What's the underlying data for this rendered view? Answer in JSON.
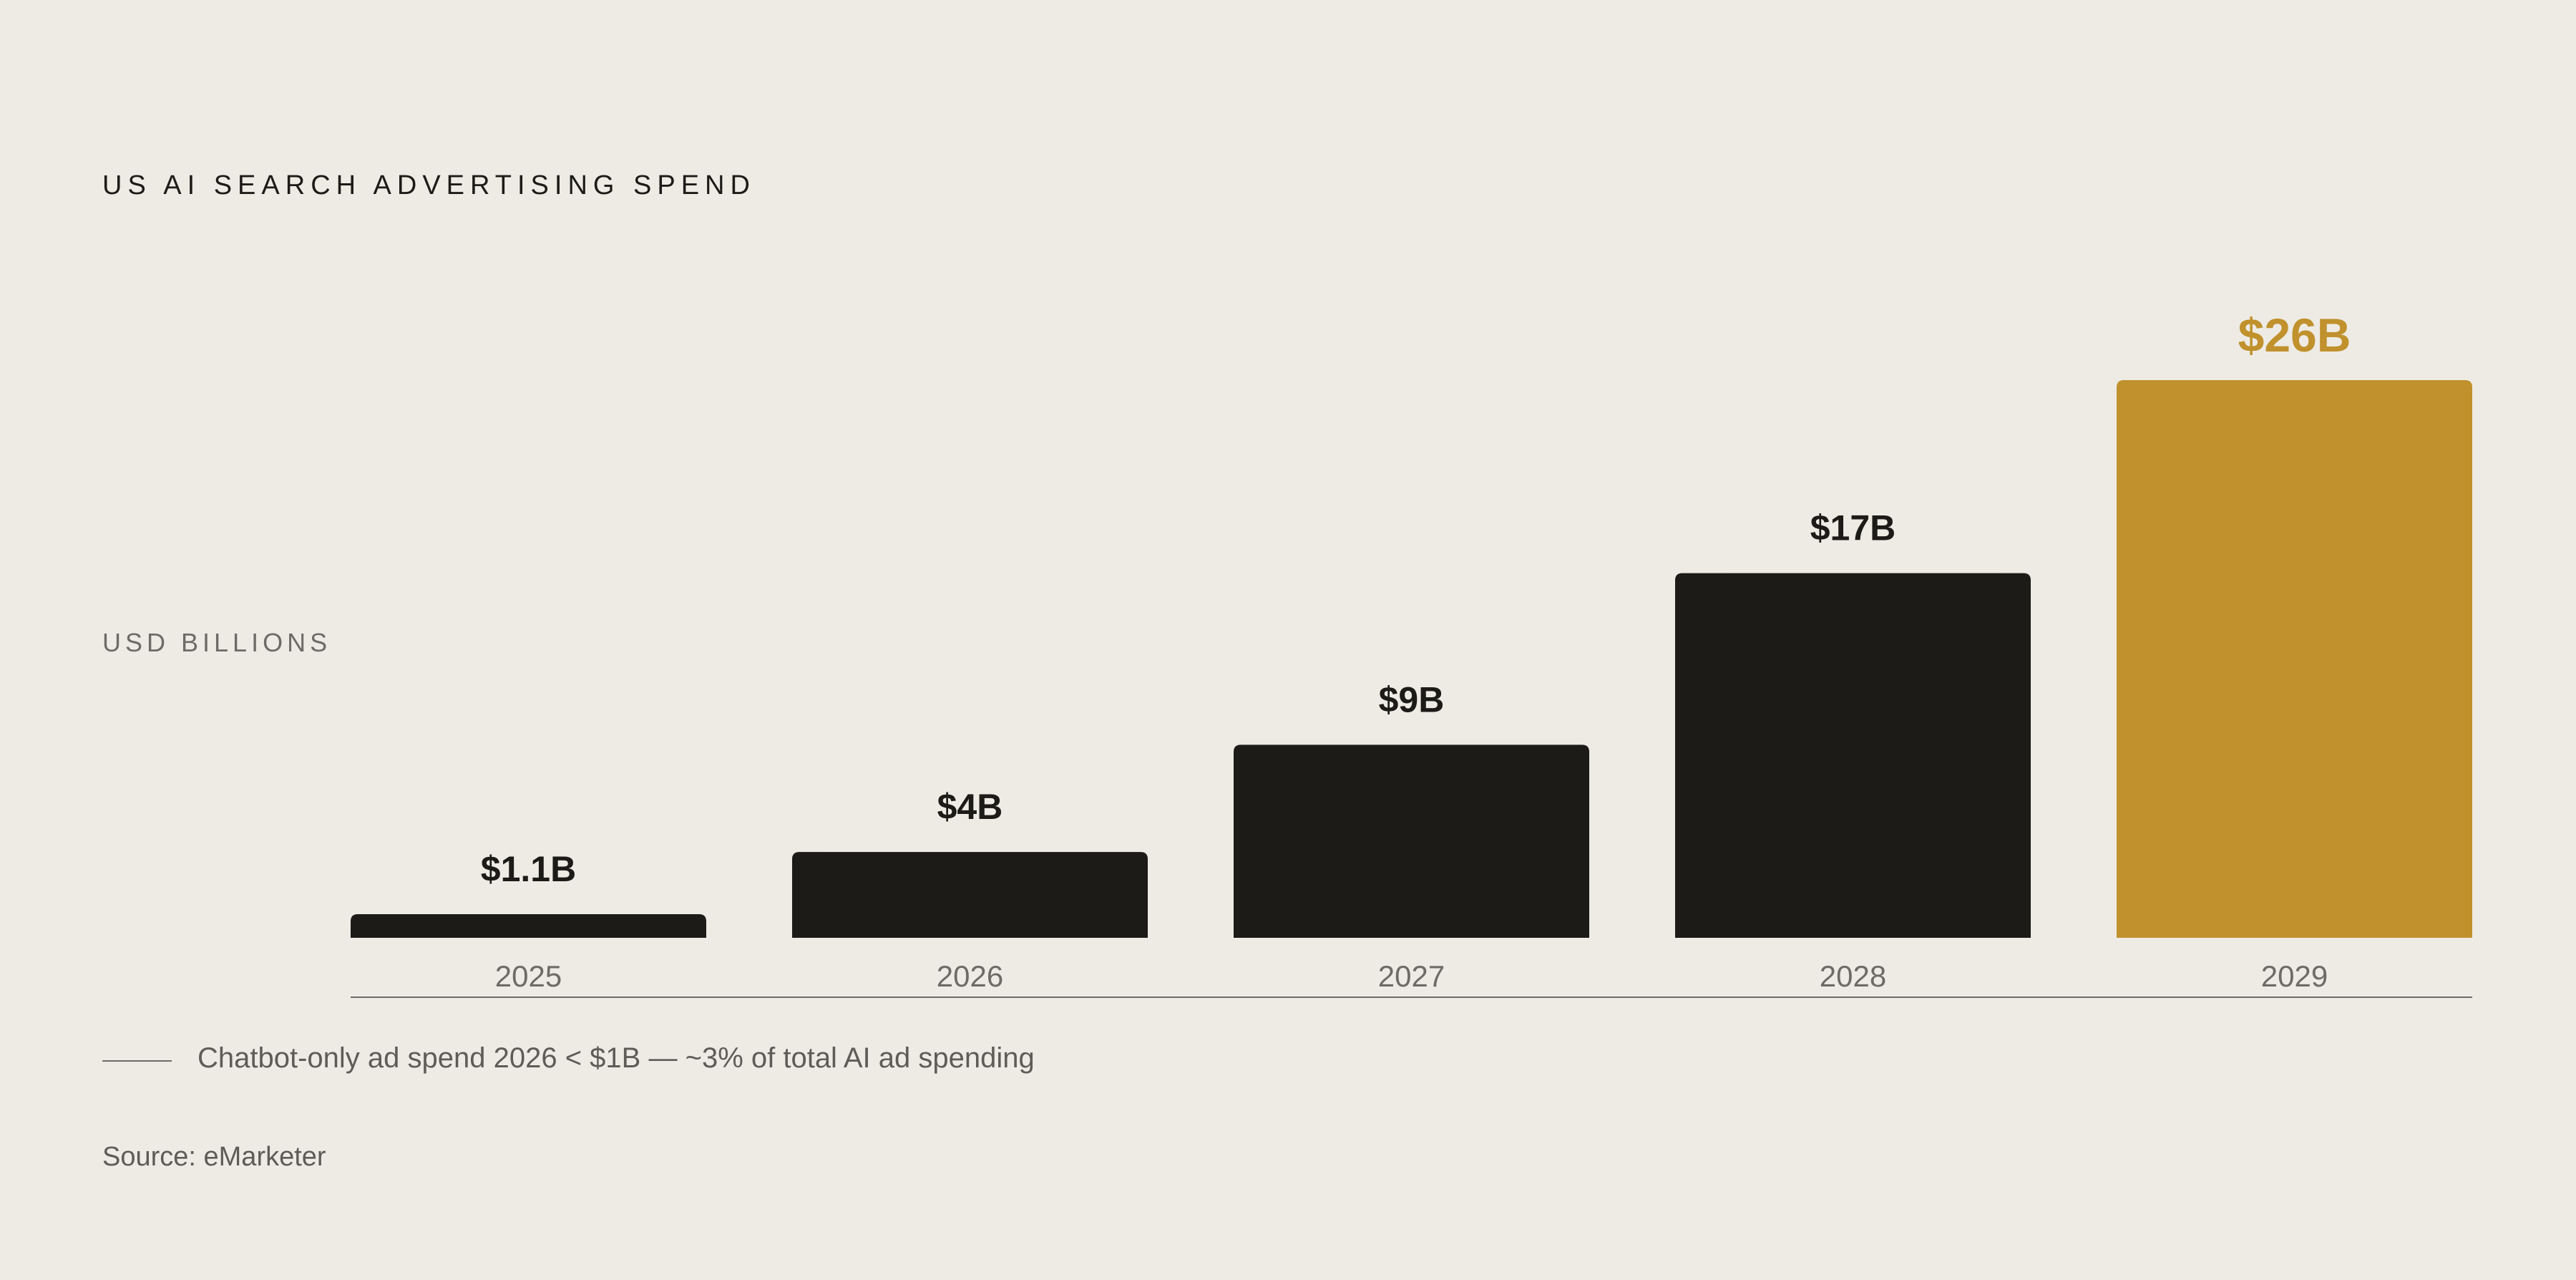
{
  "chart_data": {
    "type": "bar",
    "title": "US AI SEARCH ADVERTISING SPEND",
    "ylabel": "USD BILLIONS",
    "categories": [
      "2025",
      "2026",
      "2027",
      "2028",
      "2029"
    ],
    "values": [
      1.1,
      4,
      9,
      17,
      26
    ],
    "data_labels": [
      "$1.1B",
      "$4B",
      "$9B",
      "$17B",
      "$26B"
    ],
    "ylim": [
      0,
      26
    ],
    "grid": false,
    "highlight_index": 4,
    "colors": {
      "bar": "#1C1B18",
      "highlight": "#C0912C",
      "axis": "#6E6B66",
      "tick_label": "#6E6B66"
    }
  },
  "annotation": "Chatbot-only ad spend 2026 < $1B — ~3% of total AI ad spending",
  "source": "Source: eMarketer"
}
